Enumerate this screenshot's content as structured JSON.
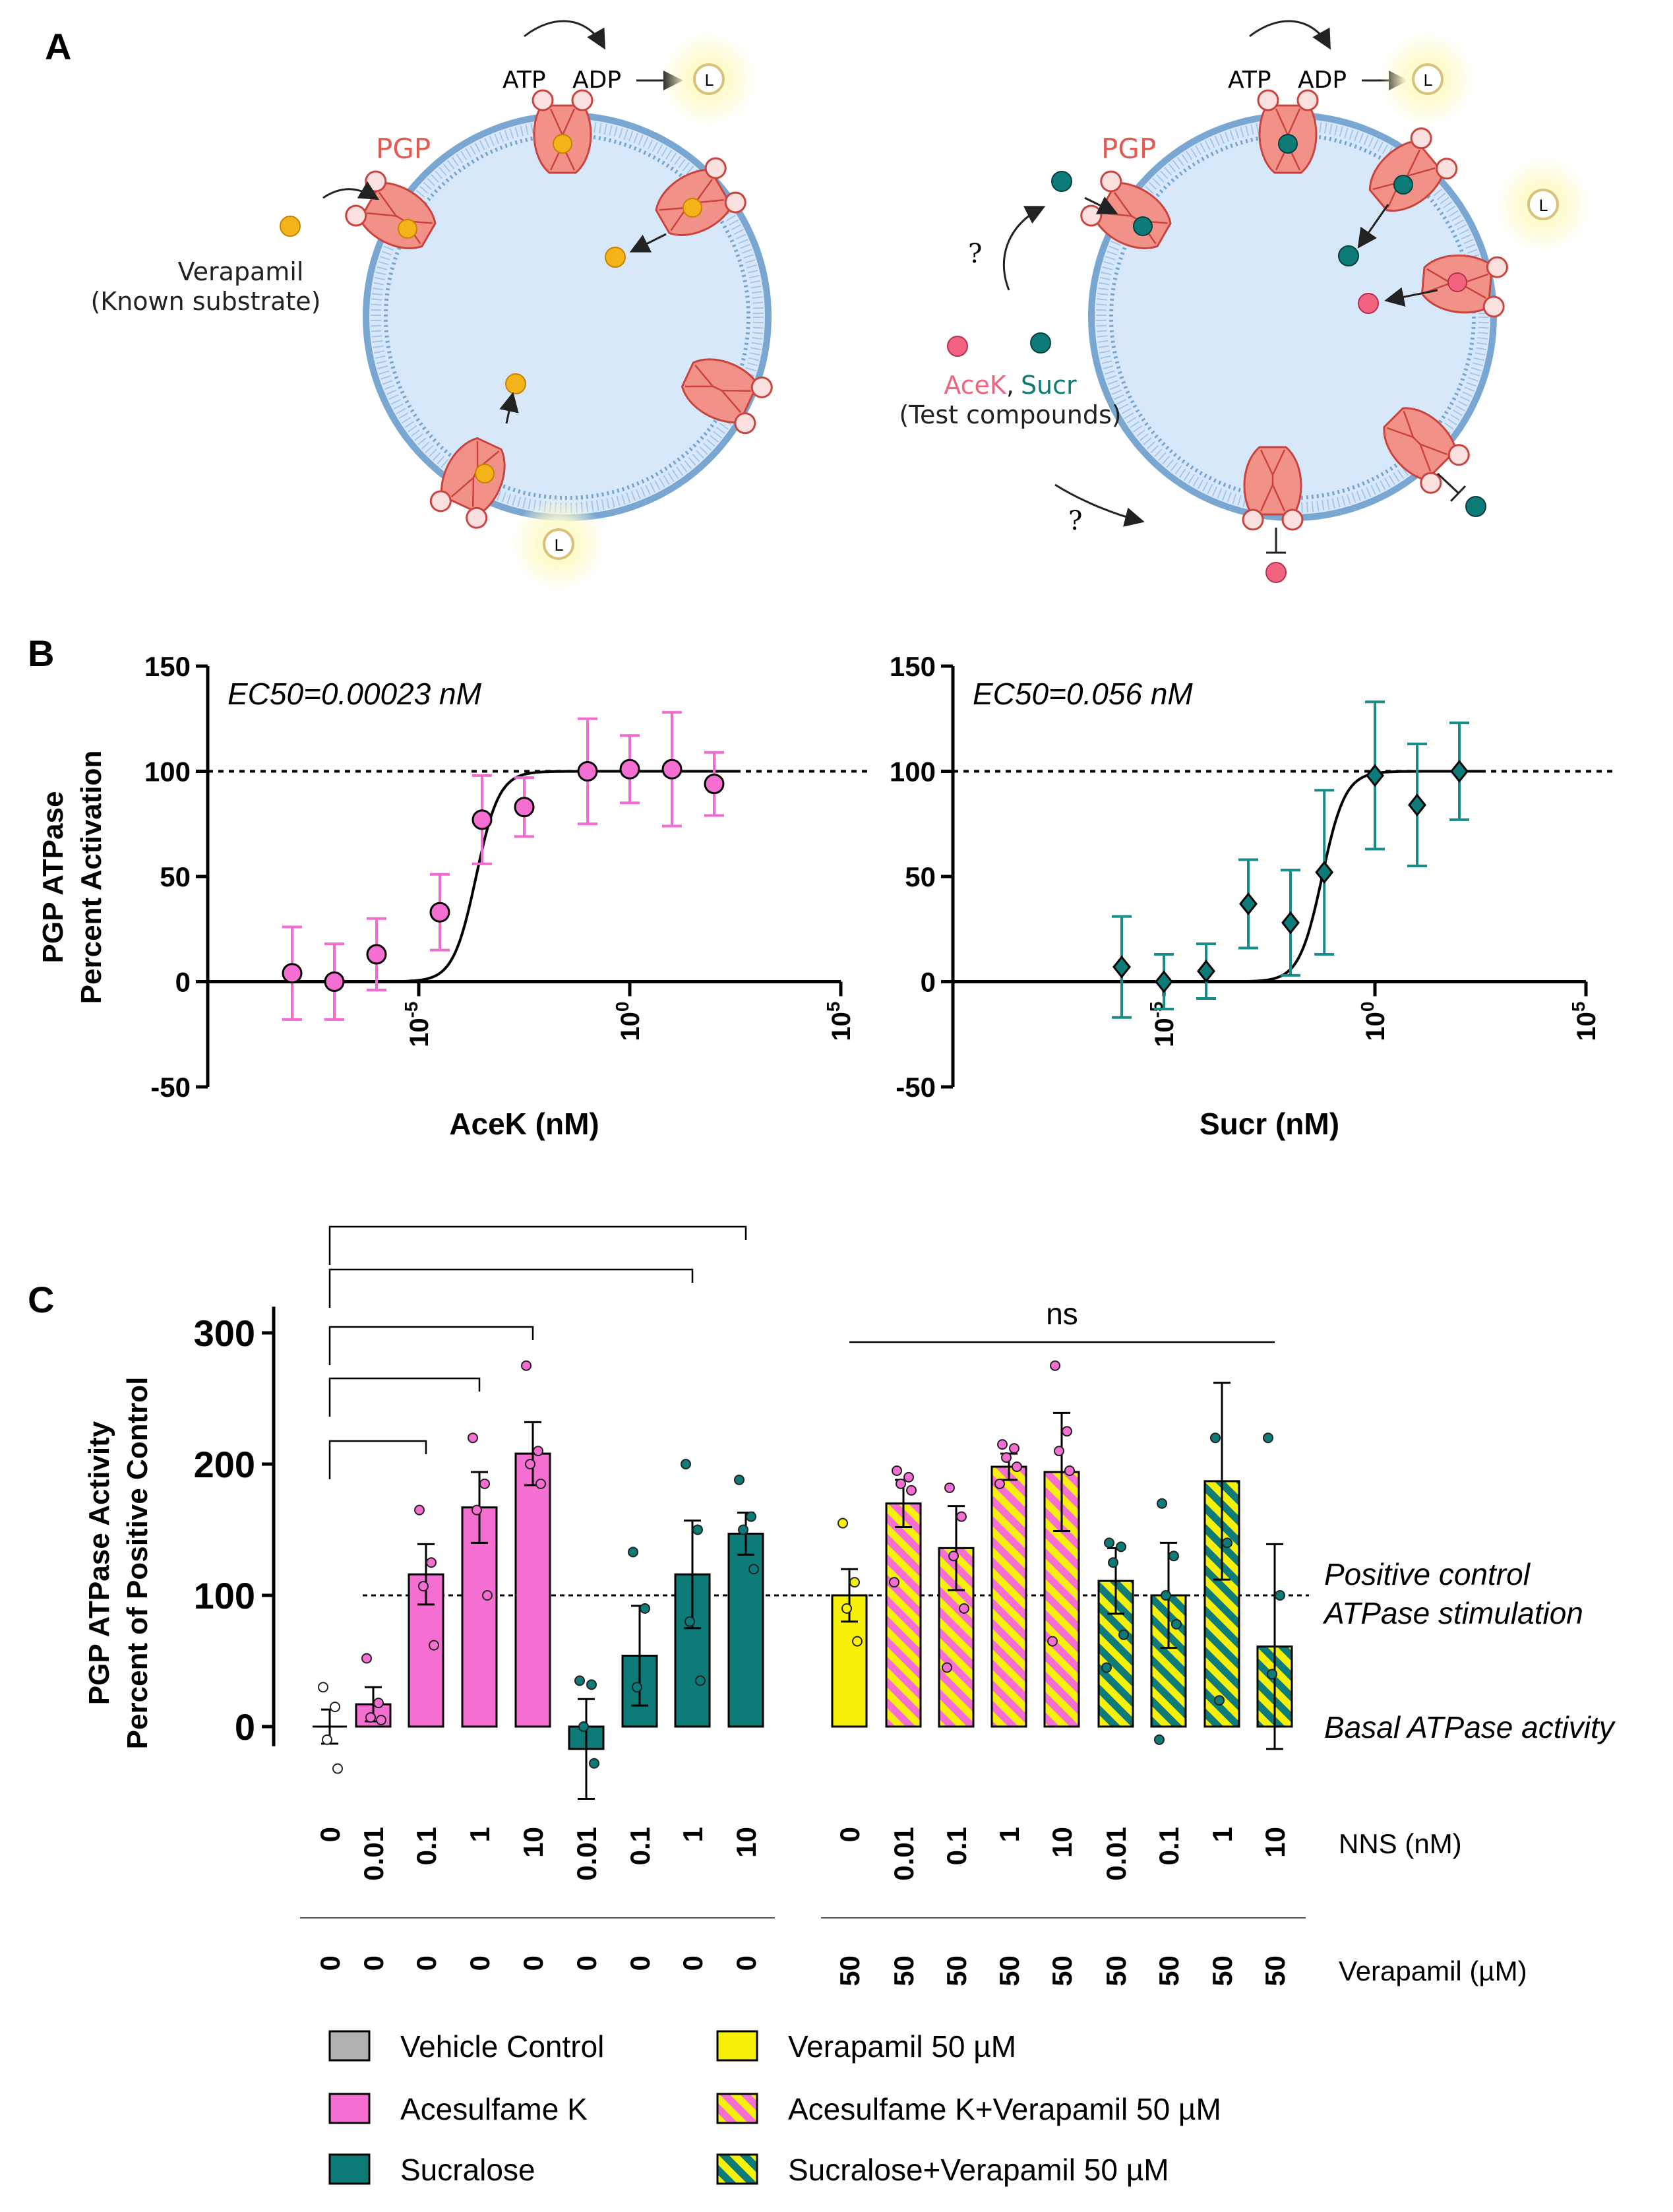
{
  "panel_labels": {
    "a": "A",
    "b": "B",
    "c": "C"
  },
  "schematic": {
    "left": {
      "protein": "PGP",
      "atp": "ATP",
      "adp": "ADP",
      "light": "L",
      "substrate_name": "Verapamil",
      "substrate_note": "(Known substrate)"
    },
    "right": {
      "protein": "PGP",
      "atp": "ATP",
      "adp": "ADP",
      "light": "L",
      "compound_a": "AceK",
      "separator": ",",
      "compound_b": "Sucr",
      "compounds_note": "(Test compounds)",
      "question": "?"
    }
  },
  "colors": {
    "pink": "#f56fd3",
    "teal": "#0d7b78",
    "yellow": "#f7f10a",
    "grey": "#b0b0b0",
    "error_pink": "#f06ccf",
    "error_teal": "#1a8c87",
    "membrane": "#7aa7d1",
    "cytoplasm": "#d8e8fb",
    "protein": "#f19187",
    "compound_pink": "#f2637f"
  },
  "chart_data": [
    {
      "type": "scatter",
      "title": "EC50=0.00023 nM",
      "ylabel_line1": "PGP ATPase",
      "ylabel_line2": "Percent Activation",
      "xlabel": "AceK (nM)",
      "xscale": "log10",
      "xlim_exp": [
        -10,
        5
      ],
      "ylim": [
        -50,
        150
      ],
      "yticks": [
        "150",
        "100",
        "50",
        "0",
        "-50"
      ],
      "xticks": [
        {
          "base": "10",
          "exp": "-5"
        },
        {
          "base": "10",
          "exp": "0"
        },
        {
          "base": "10",
          "exp": "5"
        }
      ],
      "reference_line": 100,
      "ec50_log10": -3.64,
      "hill": 1,
      "marker": "circle",
      "points": [
        {
          "log10x": -8,
          "y": 4,
          "err": 22
        },
        {
          "log10x": -7,
          "y": 0,
          "err": 18
        },
        {
          "log10x": -6,
          "y": 13,
          "err": 17
        },
        {
          "log10x": -4.5,
          "y": 33,
          "err": 18
        },
        {
          "log10x": -3.5,
          "y": 77,
          "err": 21
        },
        {
          "log10x": -2.5,
          "y": 83,
          "err": 14
        },
        {
          "log10x": -1,
          "y": 100,
          "err": 25
        },
        {
          "log10x": 0,
          "y": 101,
          "err": 16
        },
        {
          "log10x": 1,
          "y": 101,
          "err": 27
        },
        {
          "log10x": 2,
          "y": 94,
          "err": 15
        }
      ]
    },
    {
      "type": "scatter",
      "title": "EC50=0.056 nM",
      "xlabel": "Sucr (nM)",
      "xscale": "log10",
      "xlim_exp": [
        -10,
        5
      ],
      "ylim": [
        -50,
        150
      ],
      "yticks": [
        "150",
        "100",
        "50",
        "0",
        "-50"
      ],
      "xticks": [
        {
          "base": "10",
          "exp": "-5"
        },
        {
          "base": "10",
          "exp": "0"
        },
        {
          "base": "10",
          "exp": "5"
        }
      ],
      "reference_line": 100,
      "ec50_log10": -1.25,
      "hill": 1,
      "marker": "diamond",
      "points": [
        {
          "log10x": -6,
          "y": 7,
          "err": 24
        },
        {
          "log10x": -5,
          "y": 0,
          "err": 13
        },
        {
          "log10x": -4,
          "y": 5,
          "err": 13
        },
        {
          "log10x": -3,
          "y": 37,
          "err": 21
        },
        {
          "log10x": -2,
          "y": 28,
          "err": 25
        },
        {
          "log10x": -1.2,
          "y": 52,
          "err": 39
        },
        {
          "log10x": 0,
          "y": 98,
          "err": 35
        },
        {
          "log10x": 1,
          "y": 84,
          "err": 29
        },
        {
          "log10x": 2,
          "y": 100,
          "err": 23
        }
      ]
    },
    {
      "type": "bar",
      "ylabel_line1": "PGP ATPase Activity",
      "ylabel_line2": "Percent of Positive Control",
      "ylim": [
        -50,
        320
      ],
      "yticks": [
        "300",
        "200",
        "100",
        "0"
      ],
      "reference_line": 100,
      "positive_control_line1": "Positive control",
      "positive_control_line2": "ATPase stimulation",
      "basal_label": "Basal ATPase activity",
      "significance_label": "ns",
      "nns_axis_label": "NNS (nM)",
      "verapamil_axis_label": "Verapamil (µM)",
      "groups": [
        {
          "category": "Vehicle Control",
          "nns": "0",
          "verapamil": "0",
          "value": 0,
          "err": 13,
          "dots": [
            30,
            15,
            -10,
            -32
          ],
          "color": "grey",
          "pattern": "solid"
        },
        {
          "category": "Acesulfame K",
          "nns": "0.01",
          "verapamil": "0",
          "value": 17,
          "err": 13,
          "dots": [
            52,
            18,
            7,
            5
          ],
          "color": "pink",
          "pattern": "solid"
        },
        {
          "category": "Acesulfame K",
          "nns": "0.1",
          "verapamil": "0",
          "value": 116,
          "err": 23,
          "dots": [
            165,
            125,
            107,
            62
          ],
          "color": "pink",
          "pattern": "solid"
        },
        {
          "category": "Acesulfame K",
          "nns": "1",
          "verapamil": "0",
          "value": 167,
          "err": 27,
          "dots": [
            220,
            185,
            165,
            100
          ],
          "color": "pink",
          "pattern": "solid"
        },
        {
          "category": "Acesulfame K",
          "nns": "10",
          "verapamil": "0",
          "value": 208,
          "err": 24,
          "dots": [
            275,
            210,
            200,
            185
          ],
          "color": "pink",
          "pattern": "solid"
        },
        {
          "category": "Sucralose",
          "nns": "0.01",
          "verapamil": "0",
          "value": -17,
          "err": 38,
          "dots": [
            35,
            32,
            0,
            -28
          ],
          "color": "teal",
          "pattern": "solid"
        },
        {
          "category": "Sucralose",
          "nns": "0.1",
          "verapamil": "0",
          "value": 54,
          "err": 38,
          "dots": [
            133,
            90,
            30
          ],
          "color": "teal",
          "pattern": "solid"
        },
        {
          "category": "Sucralose",
          "nns": "1",
          "verapamil": "0",
          "value": 116,
          "err": 41,
          "dots": [
            200,
            150,
            80,
            35
          ],
          "color": "teal",
          "pattern": "solid"
        },
        {
          "category": "Sucralose",
          "nns": "10",
          "verapamil": "0",
          "value": 147,
          "err": 16,
          "dots": [
            188,
            160,
            150,
            120
          ],
          "color": "teal",
          "pattern": "solid"
        },
        {
          "category": "Verapamil 50 µM",
          "nns": "0",
          "verapamil": "50",
          "value": 100,
          "err": 20,
          "dots": [
            155,
            110,
            90,
            65
          ],
          "color": "yellow",
          "pattern": "solid"
        },
        {
          "category": "Acesulfame K+Verapamil 50 µM",
          "nns": "0.01",
          "verapamil": "50",
          "value": 170,
          "err": 18,
          "dots": [
            195,
            190,
            185,
            180,
            110
          ],
          "color": "pink",
          "pattern": "stripe"
        },
        {
          "category": "Acesulfame K+Verapamil 50 µM",
          "nns": "0.1",
          "verapamil": "50",
          "value": 136,
          "err": 32,
          "dots": [
            182,
            160,
            130,
            90,
            45
          ],
          "color": "pink",
          "pattern": "stripe"
        },
        {
          "category": "Acesulfame K+Verapamil 50 µM",
          "nns": "1",
          "verapamil": "50",
          "value": 198,
          "err": 10,
          "dots": [
            215,
            212,
            205,
            198,
            185
          ],
          "color": "pink",
          "pattern": "stripe"
        },
        {
          "category": "Acesulfame K+Verapamil 50 µM",
          "nns": "10",
          "verapamil": "50",
          "value": 194,
          "err": 45,
          "dots": [
            275,
            225,
            210,
            195,
            65
          ],
          "color": "pink",
          "pattern": "stripe"
        },
        {
          "category": "Sucralose+Verapamil 50 µM",
          "nns": "0.01",
          "verapamil": "50",
          "value": 111,
          "err": 25,
          "dots": [
            140,
            137,
            125,
            70,
            45
          ],
          "color": "teal",
          "pattern": "stripe"
        },
        {
          "category": "Sucralose+Verapamil 50 µM",
          "nns": "0.1",
          "verapamil": "50",
          "value": 100,
          "err": 40,
          "dots": [
            170,
            130,
            100,
            78,
            -10
          ],
          "color": "teal",
          "pattern": "stripe"
        },
        {
          "category": "Sucralose+Verapamil 50 µM",
          "nns": "1",
          "verapamil": "50",
          "value": 187,
          "err": 75,
          "dots": [
            220,
            140,
            20
          ],
          "color": "teal",
          "pattern": "stripe"
        },
        {
          "category": "Sucralose+Verapamil 50 µM",
          "nns": "10",
          "verapamil": "50",
          "value": 61,
          "err": 78,
          "dots": [
            220,
            100,
            40
          ],
          "color": "teal",
          "pattern": "stripe"
        }
      ],
      "significance_brackets": [
        {
          "from": 0,
          "to": 2
        },
        {
          "from": 0,
          "to": 3
        },
        {
          "from": 0,
          "to": 4
        },
        {
          "from": 0,
          "to": 7
        },
        {
          "from": 0,
          "to": 8
        }
      ],
      "ns_bracket": {
        "from": 9,
        "to": 17
      },
      "legend": [
        {
          "label": "Vehicle Control",
          "color": "grey",
          "pattern": "solid"
        },
        {
          "label": "Acesulfame K",
          "color": "pink",
          "pattern": "solid"
        },
        {
          "label": "Sucralose",
          "color": "teal",
          "pattern": "solid"
        },
        {
          "label": "Verapamil 50 µM",
          "color": "yellow",
          "pattern": "solid"
        },
        {
          "label": "Acesulfame K+Verapamil 50 µM",
          "color": "pink",
          "pattern": "stripe"
        },
        {
          "label": "Sucralose+Verapamil 50 µM",
          "color": "teal",
          "pattern": "stripe"
        }
      ]
    }
  ]
}
